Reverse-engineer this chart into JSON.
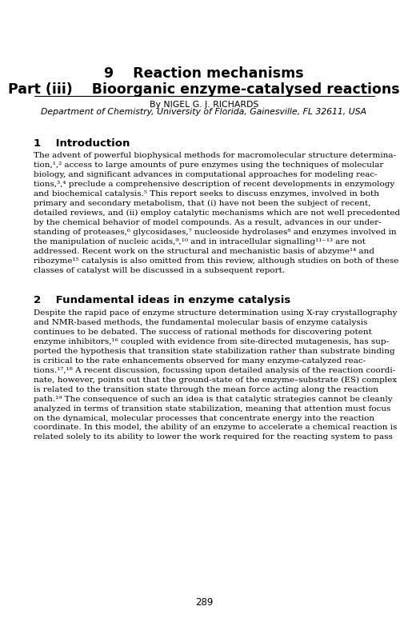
{
  "bg_color": "#ffffff",
  "page_width": 5.0,
  "page_height": 7.83,
  "title_line1": "9    Reaction mechanisms",
  "title_line2": "Part (iii)    Bioorganic enzyme-catalysed reactions",
  "author_line": "By NIGEL G. J. RICHARDS",
  "affiliation_line": "Department of Chemistry, University of Florida, Gainesville, FL 32611, USA",
  "section1_heading": "1    Introduction",
  "section1_body_lines": [
    "The advent of powerful biophysical methods for macromolecular structure determina-",
    "tion,¹˄² access to large amounts of pure enzymes using the techniques of molecular",
    "biology, and significant advances in computational approaches for modeling reac-",
    "tions,³˄⁴ preclude a comprehensive description of recent developments in enzymology",
    "and biochemical catalysis.⁵ This report seeks to discuss enzymes, involved in both",
    "primary and secondary metabolism, that (i) have not been the subject of recent,",
    "detailed reviews, and (ii) employ catalytic mechanisms which are not well precedented",
    "by the chemical behavior of model compounds. As a result, advances in our under-",
    "standing of proteases,⁶ glycosidases,⁷ nucleoside hydrolases⁸ and enzymes involved in",
    "the manipulation of nucleic acids,⁹˄¹⁰ and in intracellular signalling¹¹⁻¹³ are not",
    "addressed. Recent work on the structural and mechanistic basis of abzyme¹⁴ and",
    "ribozyme¹⁵ catalysis is also omitted from this review, although studies on both of these",
    "classes of catalyst will be discussed in a subsequent report."
  ],
  "section2_heading": "2    Fundamental ideas in enzyme catalysis",
  "section2_body_lines": [
    "Despite the rapid pace of enzyme structure determination using X-ray crystallography",
    "and NMR-based methods, the fundamental molecular basis of enzyme catalysis",
    "continues to be debated. The success of rational methods for discovering potent",
    "enzyme inhibitors,¹⁶ coupled with evidence from site-directed mutagenesis, has sup-",
    "ported the hypothesis that transition state stabilization rather than substrate binding",
    "is critical to the rate enhancements observed for many enzyme-catalyzed reac-",
    "tions.¹⁷˄¹⁸ A recent discussion, focussing upon detailed analysis of the reaction coordi-",
    "nate, however, points out that the ground-state of the enzyme–substrate (ES) complex",
    "is related to the transition state through the mean force acting along the reaction",
    "path.¹⁹ The consequence of such an idea is that catalytic strategies cannot be cleanly",
    "analyzed in terms of transition state stabilization, meaning that attention must focus",
    "on the dynamical, molecular processes that concentrate energy into the reaction",
    "coordinate. In this model, the ability of an enzyme to accelerate a chemical reaction is",
    "related solely to its ability to lower the work required for the reacting system to pass"
  ],
  "page_number": "289"
}
